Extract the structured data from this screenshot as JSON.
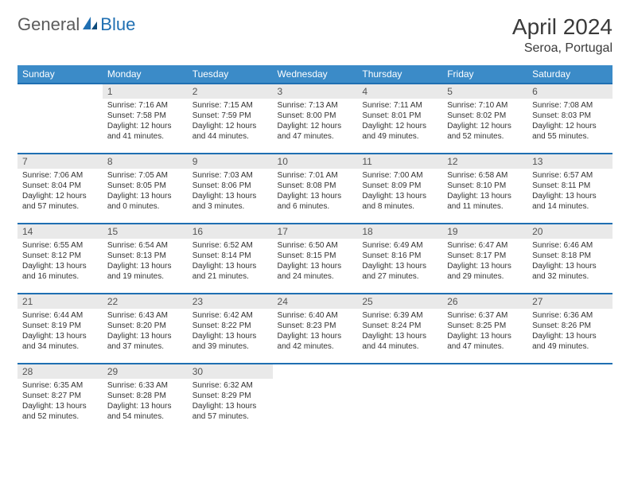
{
  "brand": {
    "part1": "General",
    "part2": "Blue"
  },
  "title": "April 2024",
  "location": "Seroa, Portugal",
  "colors": {
    "header_bg": "#3b8bc8",
    "header_text": "#ffffff",
    "rule": "#1f6fb2",
    "daynum_bg": "#e9e9e9",
    "text": "#333333",
    "brand_gray": "#5b5b5b",
    "brand_blue": "#1f6fb2"
  },
  "dayNames": [
    "Sunday",
    "Monday",
    "Tuesday",
    "Wednesday",
    "Thursday",
    "Friday",
    "Saturday"
  ],
  "weeks": [
    [
      null,
      {
        "n": "1",
        "sr": "Sunrise: 7:16 AM",
        "ss": "Sunset: 7:58 PM",
        "d1": "Daylight: 12 hours",
        "d2": "and 41 minutes."
      },
      {
        "n": "2",
        "sr": "Sunrise: 7:15 AM",
        "ss": "Sunset: 7:59 PM",
        "d1": "Daylight: 12 hours",
        "d2": "and 44 minutes."
      },
      {
        "n": "3",
        "sr": "Sunrise: 7:13 AM",
        "ss": "Sunset: 8:00 PM",
        "d1": "Daylight: 12 hours",
        "d2": "and 47 minutes."
      },
      {
        "n": "4",
        "sr": "Sunrise: 7:11 AM",
        "ss": "Sunset: 8:01 PM",
        "d1": "Daylight: 12 hours",
        "d2": "and 49 minutes."
      },
      {
        "n": "5",
        "sr": "Sunrise: 7:10 AM",
        "ss": "Sunset: 8:02 PM",
        "d1": "Daylight: 12 hours",
        "d2": "and 52 minutes."
      },
      {
        "n": "6",
        "sr": "Sunrise: 7:08 AM",
        "ss": "Sunset: 8:03 PM",
        "d1": "Daylight: 12 hours",
        "d2": "and 55 minutes."
      }
    ],
    [
      {
        "n": "7",
        "sr": "Sunrise: 7:06 AM",
        "ss": "Sunset: 8:04 PM",
        "d1": "Daylight: 12 hours",
        "d2": "and 57 minutes."
      },
      {
        "n": "8",
        "sr": "Sunrise: 7:05 AM",
        "ss": "Sunset: 8:05 PM",
        "d1": "Daylight: 13 hours",
        "d2": "and 0 minutes."
      },
      {
        "n": "9",
        "sr": "Sunrise: 7:03 AM",
        "ss": "Sunset: 8:06 PM",
        "d1": "Daylight: 13 hours",
        "d2": "and 3 minutes."
      },
      {
        "n": "10",
        "sr": "Sunrise: 7:01 AM",
        "ss": "Sunset: 8:08 PM",
        "d1": "Daylight: 13 hours",
        "d2": "and 6 minutes."
      },
      {
        "n": "11",
        "sr": "Sunrise: 7:00 AM",
        "ss": "Sunset: 8:09 PM",
        "d1": "Daylight: 13 hours",
        "d2": "and 8 minutes."
      },
      {
        "n": "12",
        "sr": "Sunrise: 6:58 AM",
        "ss": "Sunset: 8:10 PM",
        "d1": "Daylight: 13 hours",
        "d2": "and 11 minutes."
      },
      {
        "n": "13",
        "sr": "Sunrise: 6:57 AM",
        "ss": "Sunset: 8:11 PM",
        "d1": "Daylight: 13 hours",
        "d2": "and 14 minutes."
      }
    ],
    [
      {
        "n": "14",
        "sr": "Sunrise: 6:55 AM",
        "ss": "Sunset: 8:12 PM",
        "d1": "Daylight: 13 hours",
        "d2": "and 16 minutes."
      },
      {
        "n": "15",
        "sr": "Sunrise: 6:54 AM",
        "ss": "Sunset: 8:13 PM",
        "d1": "Daylight: 13 hours",
        "d2": "and 19 minutes."
      },
      {
        "n": "16",
        "sr": "Sunrise: 6:52 AM",
        "ss": "Sunset: 8:14 PM",
        "d1": "Daylight: 13 hours",
        "d2": "and 21 minutes."
      },
      {
        "n": "17",
        "sr": "Sunrise: 6:50 AM",
        "ss": "Sunset: 8:15 PM",
        "d1": "Daylight: 13 hours",
        "d2": "and 24 minutes."
      },
      {
        "n": "18",
        "sr": "Sunrise: 6:49 AM",
        "ss": "Sunset: 8:16 PM",
        "d1": "Daylight: 13 hours",
        "d2": "and 27 minutes."
      },
      {
        "n": "19",
        "sr": "Sunrise: 6:47 AM",
        "ss": "Sunset: 8:17 PM",
        "d1": "Daylight: 13 hours",
        "d2": "and 29 minutes."
      },
      {
        "n": "20",
        "sr": "Sunrise: 6:46 AM",
        "ss": "Sunset: 8:18 PM",
        "d1": "Daylight: 13 hours",
        "d2": "and 32 minutes."
      }
    ],
    [
      {
        "n": "21",
        "sr": "Sunrise: 6:44 AM",
        "ss": "Sunset: 8:19 PM",
        "d1": "Daylight: 13 hours",
        "d2": "and 34 minutes."
      },
      {
        "n": "22",
        "sr": "Sunrise: 6:43 AM",
        "ss": "Sunset: 8:20 PM",
        "d1": "Daylight: 13 hours",
        "d2": "and 37 minutes."
      },
      {
        "n": "23",
        "sr": "Sunrise: 6:42 AM",
        "ss": "Sunset: 8:22 PM",
        "d1": "Daylight: 13 hours",
        "d2": "and 39 minutes."
      },
      {
        "n": "24",
        "sr": "Sunrise: 6:40 AM",
        "ss": "Sunset: 8:23 PM",
        "d1": "Daylight: 13 hours",
        "d2": "and 42 minutes."
      },
      {
        "n": "25",
        "sr": "Sunrise: 6:39 AM",
        "ss": "Sunset: 8:24 PM",
        "d1": "Daylight: 13 hours",
        "d2": "and 44 minutes."
      },
      {
        "n": "26",
        "sr": "Sunrise: 6:37 AM",
        "ss": "Sunset: 8:25 PM",
        "d1": "Daylight: 13 hours",
        "d2": "and 47 minutes."
      },
      {
        "n": "27",
        "sr": "Sunrise: 6:36 AM",
        "ss": "Sunset: 8:26 PM",
        "d1": "Daylight: 13 hours",
        "d2": "and 49 minutes."
      }
    ],
    [
      {
        "n": "28",
        "sr": "Sunrise: 6:35 AM",
        "ss": "Sunset: 8:27 PM",
        "d1": "Daylight: 13 hours",
        "d2": "and 52 minutes."
      },
      {
        "n": "29",
        "sr": "Sunrise: 6:33 AM",
        "ss": "Sunset: 8:28 PM",
        "d1": "Daylight: 13 hours",
        "d2": "and 54 minutes."
      },
      {
        "n": "30",
        "sr": "Sunrise: 6:32 AM",
        "ss": "Sunset: 8:29 PM",
        "d1": "Daylight: 13 hours",
        "d2": "and 57 minutes."
      },
      null,
      null,
      null,
      null
    ]
  ]
}
